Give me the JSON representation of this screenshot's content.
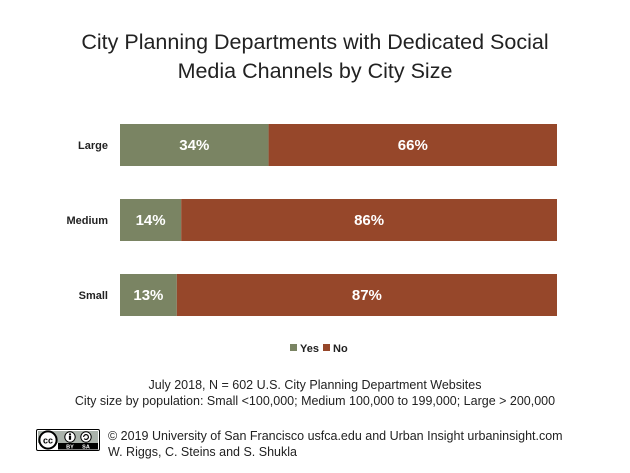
{
  "title_lines": [
    "City Planning Departments with Dedicated Social",
    "Media Channels by City Size"
  ],
  "notes": [
    "July 2018, N = 602 U.S. City Planning Department Websites",
    "City size by population:  Small <100,000; Medium 100,000 to 199,000; Large > 200,000"
  ],
  "footer": {
    "line1": "© 2019 University of San Francisco usfca.edu and Urban Insight urbaninsight.com",
    "line2": "W. Riggs, C. Steins and S. Shukla",
    "license_badge": "cc-by-sa-badge",
    "badge_text": {
      "cc": "cc",
      "by": "BY",
      "sa": "SA"
    }
  },
  "colors": {
    "yes": "#7a8463",
    "no": "#96472a"
  },
  "chart_data": {
    "type": "bar",
    "orientation": "horizontal",
    "stacked": true,
    "percent_stacked": true,
    "title": "City Planning Departments with Dedicated Social Media Channels by City Size",
    "categories": [
      "Large",
      "Medium",
      "Small"
    ],
    "series": [
      {
        "name": "Yes",
        "values": [
          34,
          14,
          13
        ],
        "labels": [
          "34%",
          "14%",
          "13%"
        ]
      },
      {
        "name": "No",
        "values": [
          66,
          86,
          87
        ],
        "labels": [
          "66%",
          "86%",
          "87%"
        ]
      }
    ],
    "xlim": [
      0,
      100
    ],
    "grid": false,
    "legend": "bottom"
  }
}
